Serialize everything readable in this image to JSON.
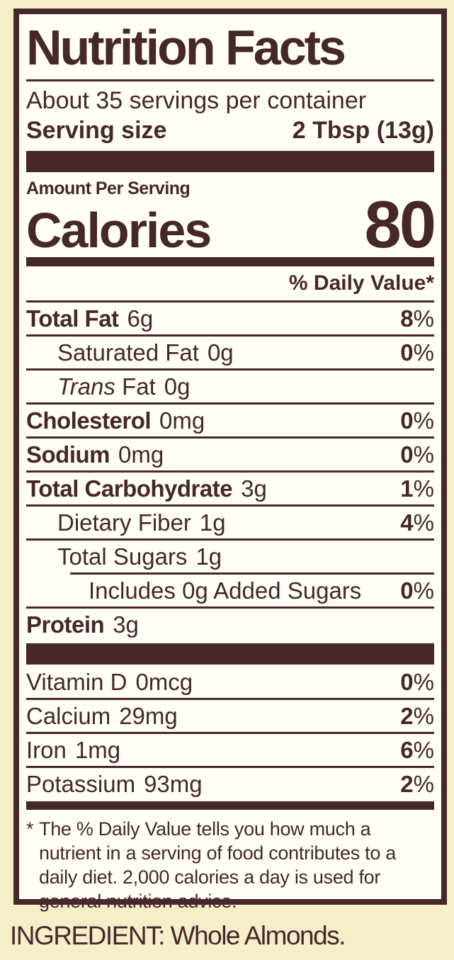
{
  "colors": {
    "ink": "#46272b",
    "cream": "#f6edc9",
    "paper": "#fffef7"
  },
  "header": {
    "title": "Nutrition Facts",
    "servings_per_container": "About 35 servings per container",
    "serving_size_label": "Serving size",
    "serving_size_value": "2 Tbsp (13g)"
  },
  "calories": {
    "amount_per_serving": "Amount Per Serving",
    "label": "Calories",
    "value": "80"
  },
  "daily_value_header": "% Daily Value*",
  "pct": "%",
  "nutrients": [
    {
      "name": "Total Fat",
      "amount": "6g",
      "dv": "8"
    },
    {
      "name": "Saturated Fat",
      "amount": "0g",
      "dv": "0"
    },
    {
      "name_italic": "Trans",
      "name": " Fat",
      "amount": "0g"
    },
    {
      "name": "Cholesterol",
      "amount": "0mg",
      "dv": "0"
    },
    {
      "name": "Sodium",
      "amount": "0mg",
      "dv": "0"
    },
    {
      "name": "Total Carbohydrate",
      "amount": "3g",
      "dv": "1"
    },
    {
      "name": "Dietary Fiber",
      "amount": "1g",
      "dv": "4"
    },
    {
      "name": "Total Sugars",
      "amount": "1g"
    },
    {
      "name": "Includes 0g Added Sugars",
      "dv": "0"
    },
    {
      "name": "Protein",
      "amount": "3g"
    }
  ],
  "vitamins": [
    {
      "name": "Vitamin D",
      "amount": "0mcg",
      "dv": "0"
    },
    {
      "name": "Calcium",
      "amount": "29mg",
      "dv": "2"
    },
    {
      "name": "Iron",
      "amount": "1mg",
      "dv": "6"
    },
    {
      "name": "Potassium",
      "amount": "93mg",
      "dv": "2"
    }
  ],
  "footnote": {
    "marker": "*",
    "text": "The % Daily Value tells you how much a nutrient in a serving of food contributes to a daily diet. 2,000 calories a day is used for general nutrition advice."
  },
  "ingredient": "INGREDIENT: Whole Almonds."
}
